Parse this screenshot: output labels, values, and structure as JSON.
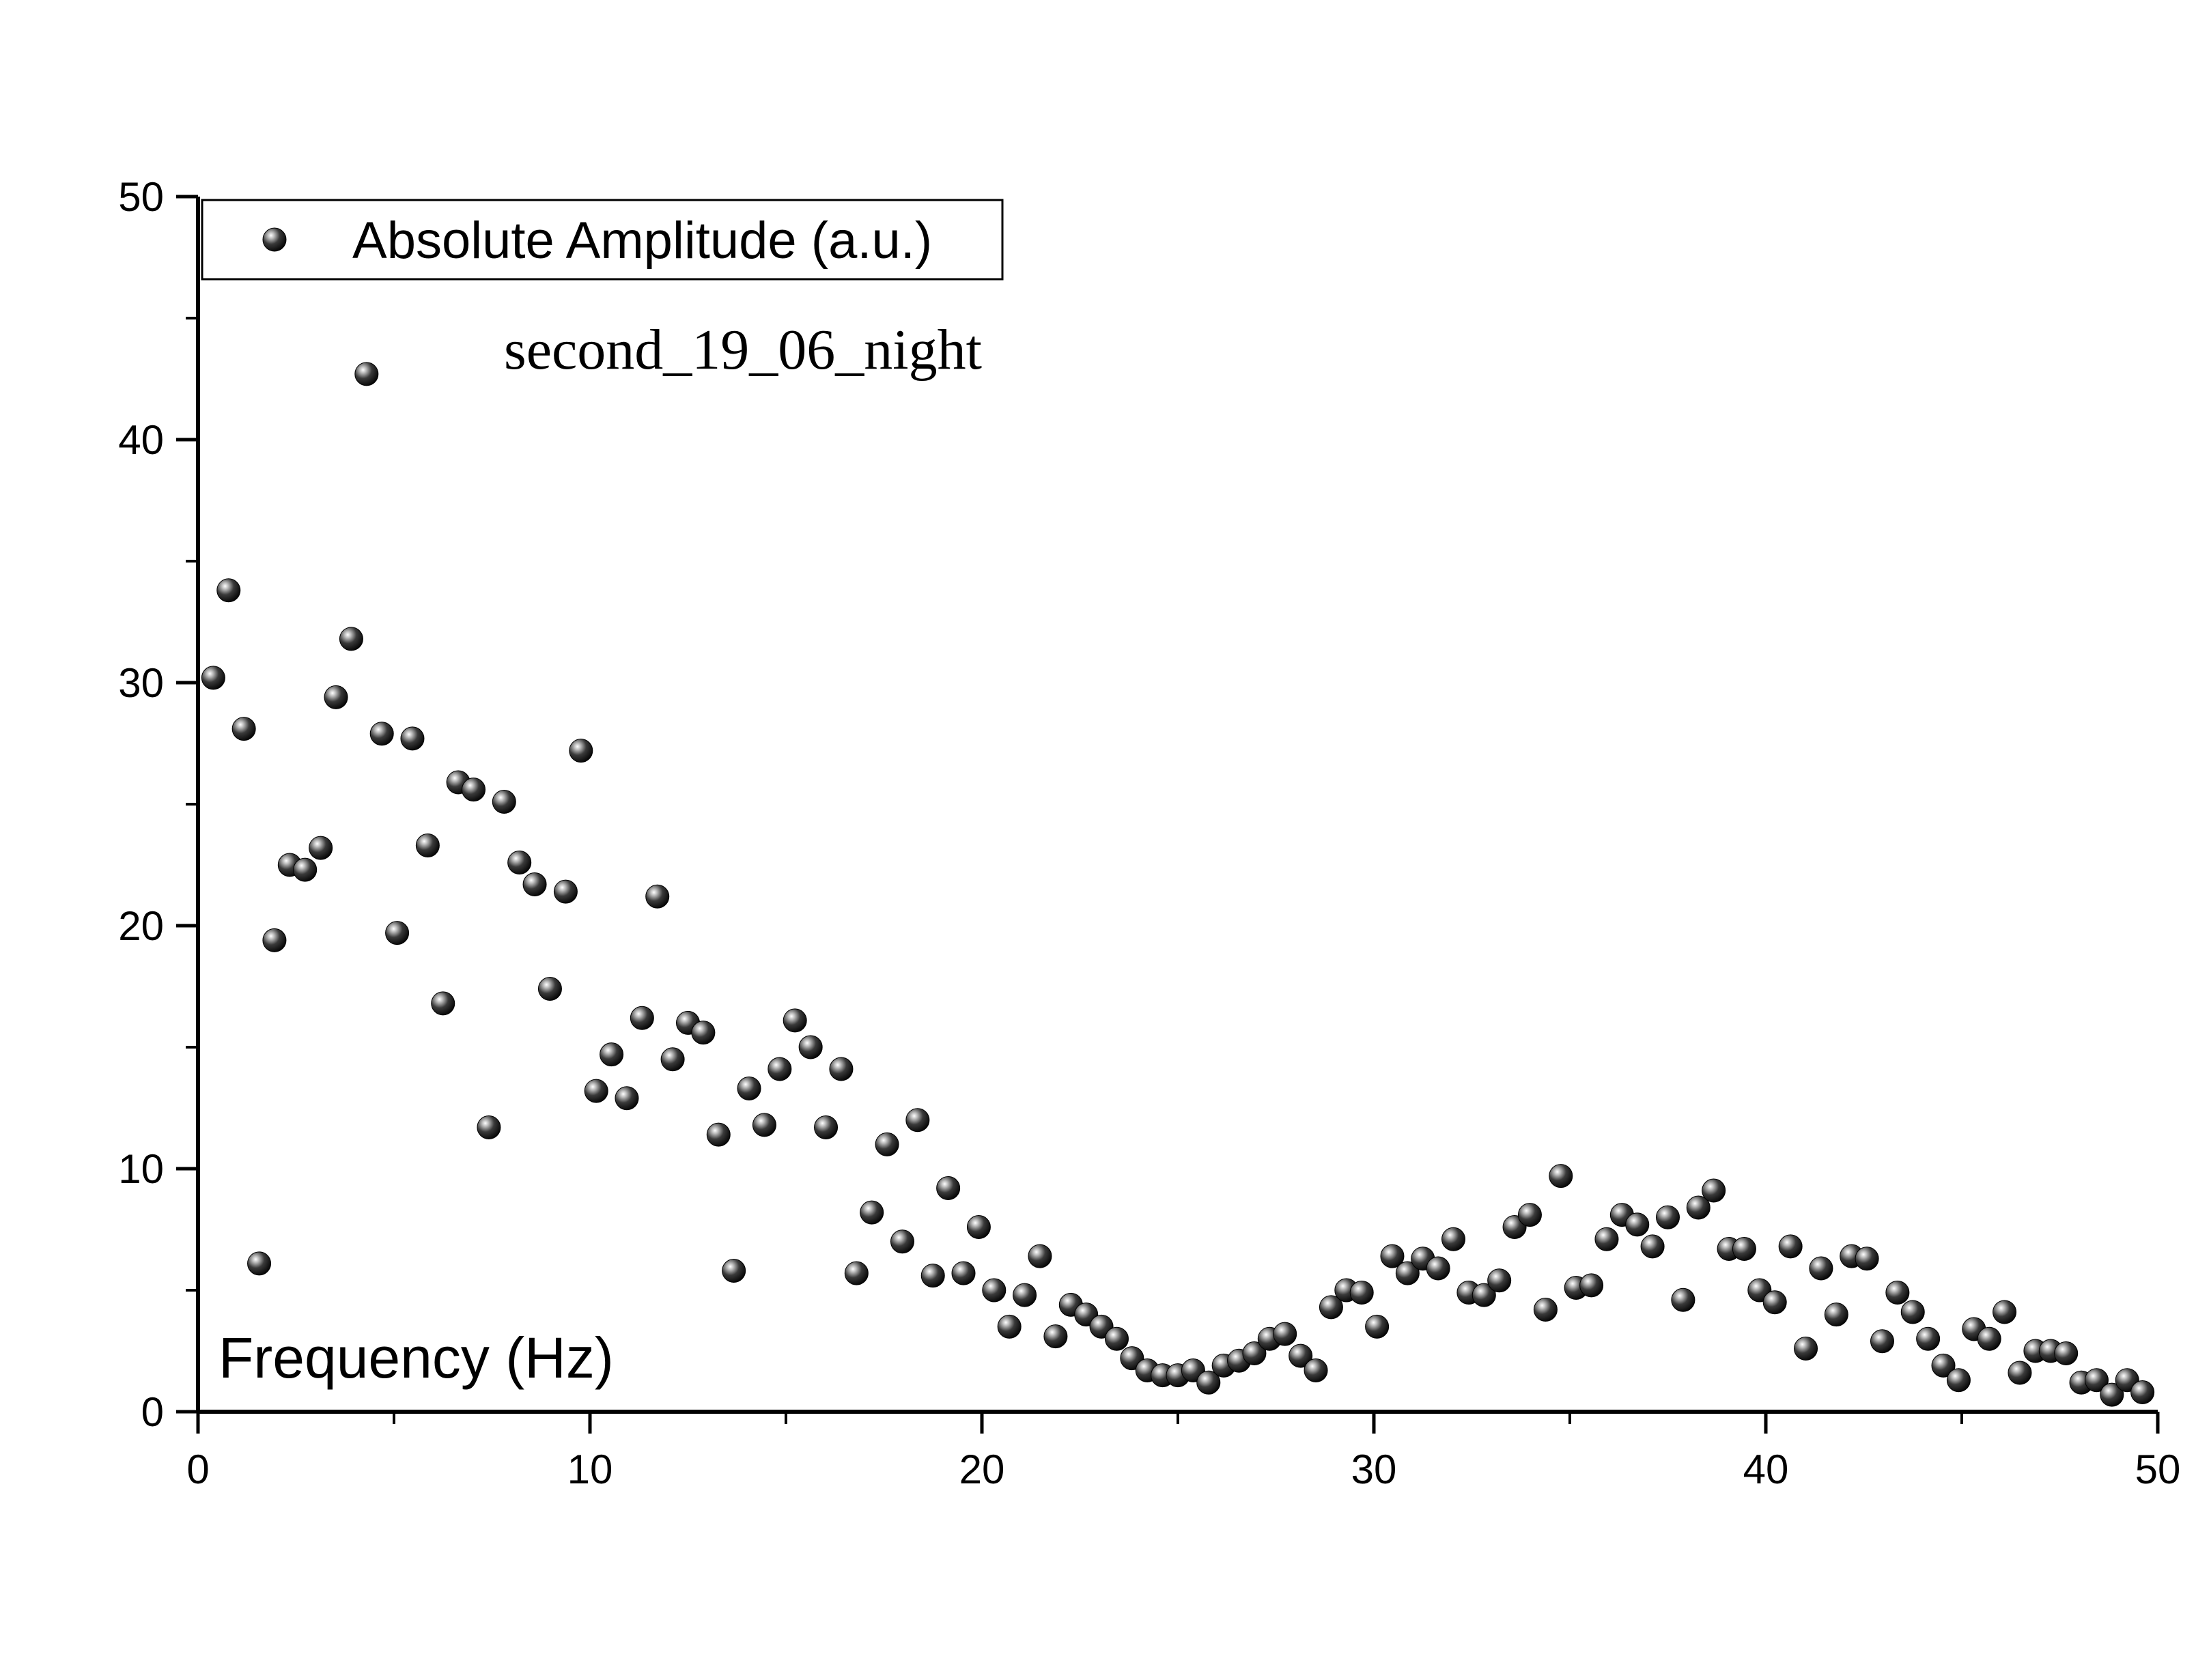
{
  "chart_data": {
    "type": "scatter",
    "title": "",
    "xlabel": "Frequency (Hz)",
    "ylabel": "",
    "xlim": [
      0,
      50
    ],
    "ylim": [
      0,
      50
    ],
    "xticks": [
      0,
      10,
      20,
      30,
      40,
      50
    ],
    "yticks": [
      0,
      10,
      20,
      30,
      40,
      50
    ],
    "grid": false,
    "legend_position": "top-left",
    "annotation": "second_19_06_night",
    "series": [
      {
        "name": "Absolute Amplitude (a.u.)",
        "color": "#111111",
        "points": [
          [
            0.39,
            30.2
          ],
          [
            0.78,
            33.8
          ],
          [
            1.17,
            28.1
          ],
          [
            1.56,
            6.1
          ],
          [
            1.95,
            19.4
          ],
          [
            2.34,
            22.5
          ],
          [
            2.73,
            22.3
          ],
          [
            3.13,
            23.2
          ],
          [
            3.52,
            29.4
          ],
          [
            3.91,
            31.8
          ],
          [
            4.3,
            42.7
          ],
          [
            4.69,
            27.9
          ],
          [
            5.08,
            19.7
          ],
          [
            5.47,
            27.7
          ],
          [
            5.86,
            23.3
          ],
          [
            6.25,
            16.8
          ],
          [
            6.64,
            25.9
          ],
          [
            7.03,
            25.6
          ],
          [
            7.42,
            11.7
          ],
          [
            7.81,
            25.1
          ],
          [
            8.2,
            22.6
          ],
          [
            8.59,
            21.7
          ],
          [
            8.98,
            17.4
          ],
          [
            9.38,
            21.4
          ],
          [
            9.77,
            27.2
          ],
          [
            10.16,
            13.2
          ],
          [
            10.55,
            14.7
          ],
          [
            10.94,
            12.9
          ],
          [
            11.33,
            16.2
          ],
          [
            11.72,
            21.2
          ],
          [
            12.11,
            14.5
          ],
          [
            12.5,
            16.0
          ],
          [
            12.89,
            15.6
          ],
          [
            13.28,
            11.4
          ],
          [
            13.67,
            5.8
          ],
          [
            14.06,
            13.3
          ],
          [
            14.45,
            11.8
          ],
          [
            14.84,
            14.1
          ],
          [
            15.23,
            16.1
          ],
          [
            15.63,
            15.0
          ],
          [
            16.02,
            11.7
          ],
          [
            16.41,
            14.1
          ],
          [
            16.8,
            5.7
          ],
          [
            17.19,
            8.2
          ],
          [
            17.58,
            11.0
          ],
          [
            17.97,
            7.0
          ],
          [
            18.36,
            12.0
          ],
          [
            18.75,
            5.6
          ],
          [
            19.14,
            9.2
          ],
          [
            19.53,
            5.7
          ],
          [
            19.92,
            7.6
          ],
          [
            20.31,
            5.0
          ],
          [
            20.7,
            3.5
          ],
          [
            21.09,
            4.8
          ],
          [
            21.48,
            6.4
          ],
          [
            21.88,
            3.1
          ],
          [
            22.27,
            4.4
          ],
          [
            22.66,
            4.0
          ],
          [
            23.05,
            3.5
          ],
          [
            23.44,
            3.0
          ],
          [
            23.83,
            2.2
          ],
          [
            24.22,
            1.7
          ],
          [
            24.61,
            1.5
          ],
          [
            25.0,
            1.5
          ],
          [
            25.39,
            1.7
          ],
          [
            25.78,
            1.2
          ],
          [
            26.17,
            1.9
          ],
          [
            26.56,
            2.1
          ],
          [
            26.95,
            2.4
          ],
          [
            27.34,
            3.0
          ],
          [
            27.73,
            3.2
          ],
          [
            28.13,
            2.3
          ],
          [
            28.52,
            1.7
          ],
          [
            28.91,
            4.3
          ],
          [
            29.3,
            5.0
          ],
          [
            29.69,
            4.9
          ],
          [
            30.08,
            3.5
          ],
          [
            30.47,
            6.4
          ],
          [
            30.86,
            5.7
          ],
          [
            31.25,
            6.3
          ],
          [
            31.64,
            5.9
          ],
          [
            32.03,
            7.1
          ],
          [
            32.42,
            4.9
          ],
          [
            32.81,
            4.8
          ],
          [
            33.2,
            5.4
          ],
          [
            33.59,
            7.6
          ],
          [
            33.98,
            8.1
          ],
          [
            34.38,
            4.2
          ],
          [
            34.77,
            9.7
          ],
          [
            35.16,
            5.1
          ],
          [
            35.55,
            5.2
          ],
          [
            35.94,
            7.1
          ],
          [
            36.33,
            8.1
          ],
          [
            36.72,
            7.7
          ],
          [
            37.11,
            6.8
          ],
          [
            37.5,
            8.0
          ],
          [
            37.89,
            4.6
          ],
          [
            38.28,
            8.4
          ],
          [
            38.67,
            9.1
          ],
          [
            39.06,
            6.7
          ],
          [
            39.45,
            6.7
          ],
          [
            39.84,
            5.0
          ],
          [
            40.23,
            4.5
          ],
          [
            40.63,
            6.8
          ],
          [
            41.02,
            2.6
          ],
          [
            41.41,
            5.9
          ],
          [
            41.8,
            4.0
          ],
          [
            42.19,
            6.4
          ],
          [
            42.58,
            6.3
          ],
          [
            42.97,
            2.9
          ],
          [
            43.36,
            4.9
          ],
          [
            43.75,
            4.1
          ],
          [
            44.14,
            3.0
          ],
          [
            44.53,
            1.9
          ],
          [
            44.92,
            1.3
          ],
          [
            45.31,
            3.4
          ],
          [
            45.7,
            3.0
          ],
          [
            46.09,
            4.1
          ],
          [
            46.48,
            1.6
          ],
          [
            46.88,
            2.5
          ],
          [
            47.27,
            2.5
          ],
          [
            47.66,
            2.4
          ],
          [
            48.05,
            1.2
          ],
          [
            48.44,
            1.3
          ],
          [
            48.83,
            0.7
          ],
          [
            49.22,
            1.3
          ],
          [
            49.61,
            0.8
          ]
        ]
      }
    ]
  }
}
